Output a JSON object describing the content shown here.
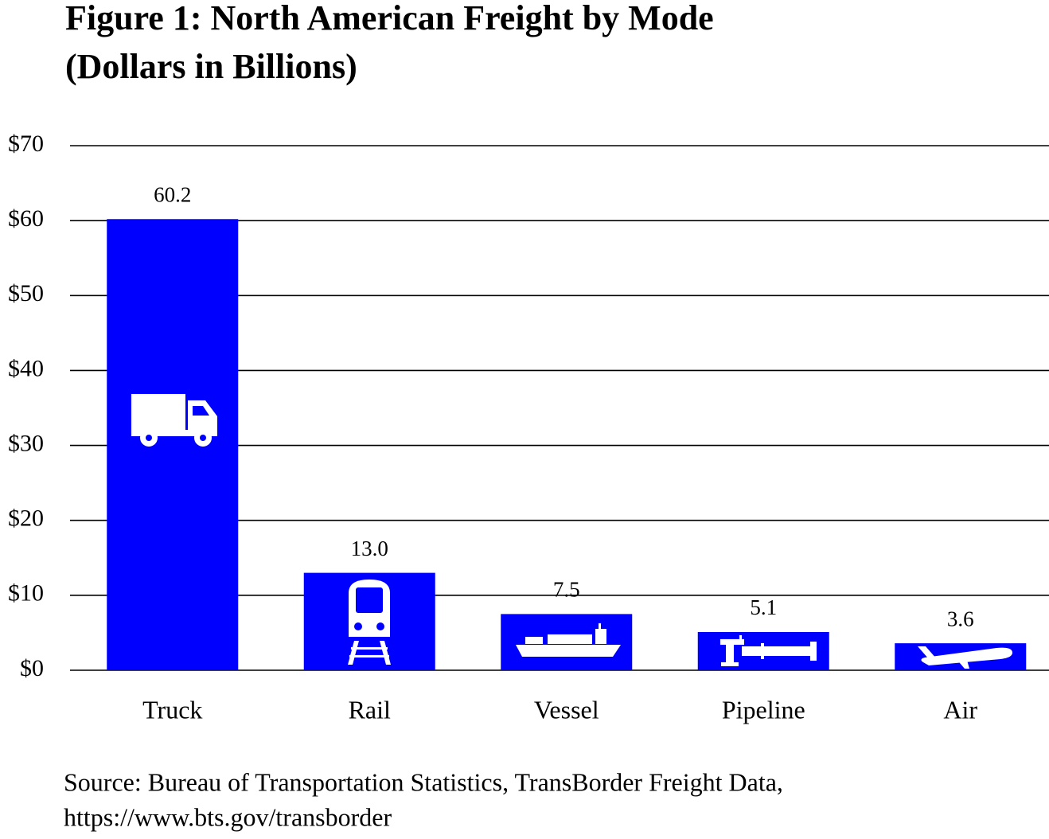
{
  "chart_data": {
    "type": "bar",
    "title": "Figure 1: North American Freight by Mode",
    "subtitle": "(Dollars in Billions)",
    "categories": [
      "Truck",
      "Rail",
      "Vessel",
      "Pipeline",
      "Air"
    ],
    "values": [
      60.2,
      13.0,
      7.5,
      5.1,
      3.6
    ],
    "value_labels": [
      "60.2",
      "13.0",
      "7.5",
      "5.1",
      "3.6"
    ],
    "color": "#0000ff",
    "ylim": [
      0,
      70
    ],
    "yticks": [
      {
        "value": 0,
        "label": "$0"
      },
      {
        "value": 10,
        "label": "$10"
      },
      {
        "value": 20,
        "label": "$20"
      },
      {
        "value": 30,
        "label": "$30"
      },
      {
        "value": 40,
        "label": "$40"
      },
      {
        "value": 50,
        "label": "$50"
      },
      {
        "value": 60,
        "label": "$60"
      },
      {
        "value": 70,
        "label": "$70"
      }
    ],
    "grid": true,
    "source": [
      "Source: Bureau of Transportation Statistics, TransBorder Freight Data,",
      "https://www.bts.gov/transborder"
    ]
  }
}
